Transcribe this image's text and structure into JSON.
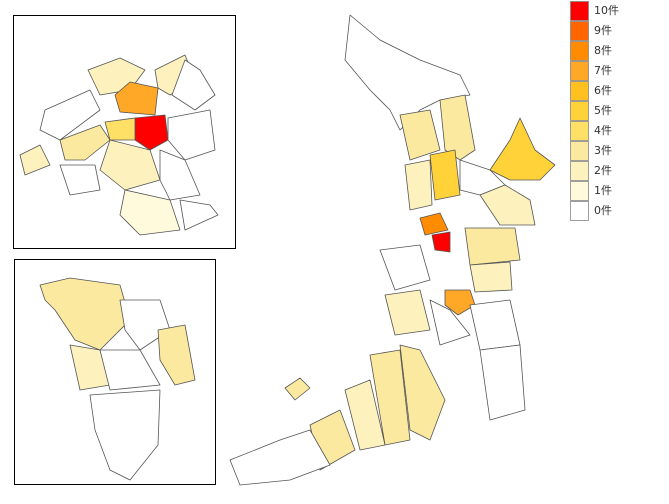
{
  "legend": {
    "items": [
      {
        "label": "10件",
        "color": "#ff0000"
      },
      {
        "label": "9件",
        "color": "#ff6600"
      },
      {
        "label": "8件",
        "color": "#ff8c00"
      },
      {
        "label": "7件",
        "color": "#ffa726"
      },
      {
        "label": "6件",
        "color": "#ffc020"
      },
      {
        "label": "5件",
        "color": "#ffd23a"
      },
      {
        "label": "4件",
        "color": "#ffe066"
      },
      {
        "label": "3件",
        "color": "#fbe9a0"
      },
      {
        "label": "2件",
        "color": "#fdf1bd"
      },
      {
        "label": "1件",
        "color": "#fffadc"
      },
      {
        "label": "0件",
        "color": "#ffffff"
      }
    ]
  }
}
